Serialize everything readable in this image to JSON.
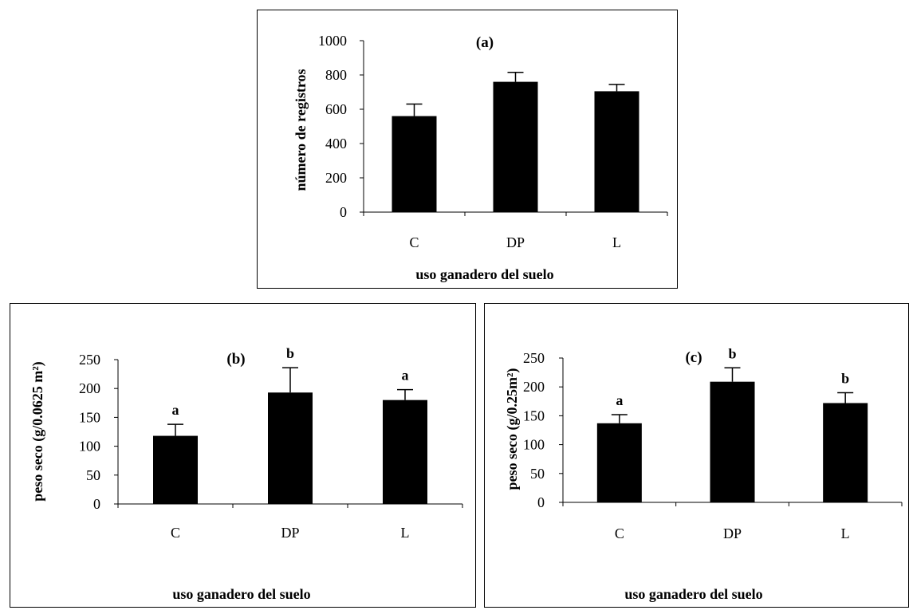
{
  "chart_data": [
    {
      "id": "a",
      "type": "bar",
      "title": "(a)",
      "xlabel": "uso ganadero del suelo",
      "ylabel": "número de registros",
      "categories": [
        "C",
        "DP",
        "L"
      ],
      "values": [
        560,
        760,
        705
      ],
      "errors": [
        70,
        55,
        40
      ],
      "significance": [
        "",
        "",
        ""
      ],
      "ylim": [
        0,
        1000
      ],
      "yticks": [
        0,
        200,
        400,
        600,
        800,
        1000
      ],
      "colors": {
        "bar": "#000000",
        "axis": "#000000"
      }
    },
    {
      "id": "b",
      "type": "bar",
      "title": "(b)",
      "xlabel": "uso ganadero del suelo",
      "ylabel": "peso seco (g/0.0625 m²)",
      "categories": [
        "C",
        "DP",
        "L"
      ],
      "values": [
        118,
        193,
        180
      ],
      "errors": [
        20,
        43,
        18
      ],
      "significance": [
        "a",
        "b",
        "a"
      ],
      "ylim": [
        0,
        250
      ],
      "yticks": [
        0,
        50,
        100,
        150,
        200,
        250
      ],
      "colors": {
        "bar": "#000000",
        "axis": "#000000"
      }
    },
    {
      "id": "c",
      "type": "bar",
      "title": "(c)",
      "xlabel": "uso ganadero del suelo",
      "ylabel": "peso seco (g/0.25m²)",
      "categories": [
        "C",
        "DP",
        "L"
      ],
      "values": [
        137,
        209,
        172
      ],
      "errors": [
        15,
        24,
        18
      ],
      "significance": [
        "a",
        "b",
        "b"
      ],
      "ylim": [
        0,
        250
      ],
      "yticks": [
        0,
        50,
        100,
        150,
        200,
        250
      ],
      "colors": {
        "bar": "#000000",
        "axis": "#000000"
      }
    }
  ]
}
